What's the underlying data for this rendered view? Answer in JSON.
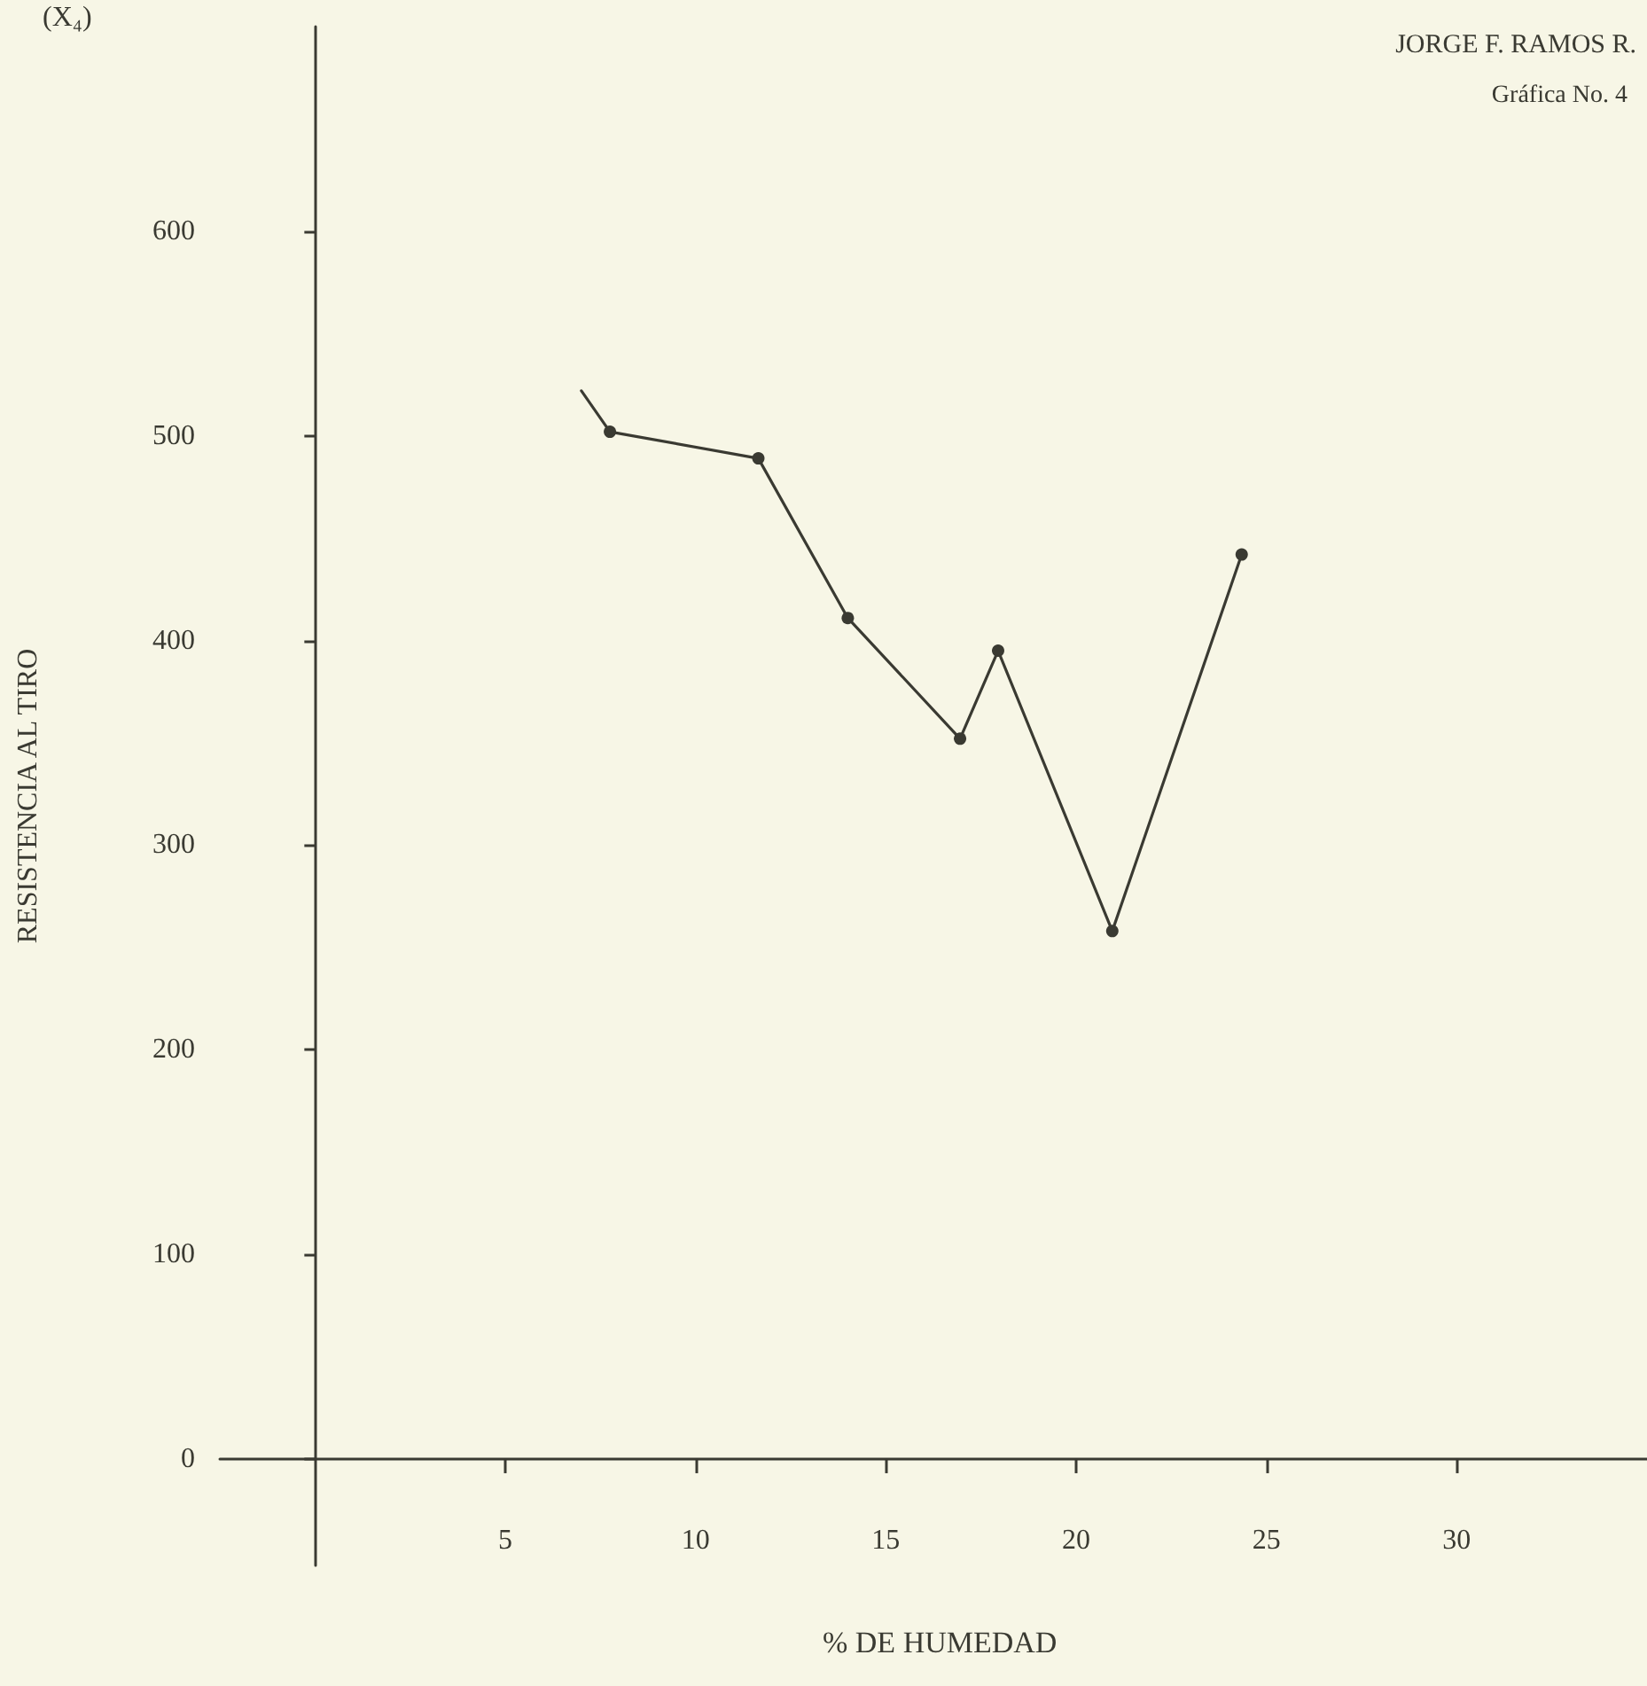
{
  "chart_data": {
    "type": "line",
    "title": "Gráfica No. 4",
    "xlabel": "% DE HUMEDAD",
    "ylabel": "RESISTENCIA AL TIRO",
    "annotations": [
      "JORGE F. RAMOS R.",
      "(X₄)"
    ],
    "x": [
      7.0,
      7.75,
      11.65,
      14.0,
      16.95,
      17.95,
      20.95,
      24.35
    ],
    "series": [
      {
        "color": "#3a3a32",
        "values": [
          522,
          502,
          489,
          411,
          352,
          395,
          258,
          442
        ]
      }
    ],
    "xlim": [
      -2.5,
      35
    ],
    "ylim": [
      -52,
      700
    ],
    "xticks": [
      5,
      10,
      15,
      20,
      25,
      30
    ],
    "yticks": [
      0,
      100,
      200,
      300,
      400,
      500,
      600
    ],
    "marker": "circle",
    "line_style": "solid"
  }
}
